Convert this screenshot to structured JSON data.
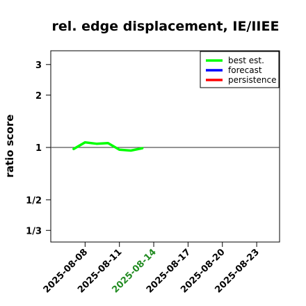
{
  "chart_data": {
    "type": "line",
    "title": "rel. edge displacement, IE/IIEE",
    "xlabel": "",
    "ylabel": "ratio score",
    "y_scale": "log",
    "ylim": [
      0.2857,
      3.6
    ],
    "xlim": [
      "2025-08-05",
      "2025-08-25"
    ],
    "y_ticks": [
      {
        "value": 0.3333,
        "label": "1/3"
      },
      {
        "value": 0.5,
        "label": "1/2"
      },
      {
        "value": 1,
        "label": "1"
      },
      {
        "value": 2,
        "label": "2"
      },
      {
        "value": 3,
        "label": "3"
      }
    ],
    "x_ticks": [
      {
        "date": "2025-08-08",
        "label": "2025-08-08",
        "color": "#000000"
      },
      {
        "date": "2025-08-11",
        "label": "2025-08-11",
        "color": "#000000"
      },
      {
        "date": "2025-08-14",
        "label": "2025-08-14",
        "color": "#228B22"
      },
      {
        "date": "2025-08-17",
        "label": "2025-08-17",
        "color": "#000000"
      },
      {
        "date": "2025-08-20",
        "label": "2025-08-20",
        "color": "#000000"
      },
      {
        "date": "2025-08-23",
        "label": "2025-08-23",
        "color": "#000000"
      }
    ],
    "reference_line": 1,
    "legend_position": "top-right",
    "series": [
      {
        "name": "best est.",
        "color": "#00ff00",
        "points": [
          {
            "x": "2025-08-07",
            "y": 0.98
          },
          {
            "x": "2025-08-08",
            "y": 1.07
          },
          {
            "x": "2025-08-09",
            "y": 1.05
          },
          {
            "x": "2025-08-10",
            "y": 1.06
          },
          {
            "x": "2025-08-11",
            "y": 0.97
          },
          {
            "x": "2025-08-12",
            "y": 0.96
          },
          {
            "x": "2025-08-13",
            "y": 0.99
          }
        ]
      },
      {
        "name": "forecast",
        "color": "#0000ff",
        "points": []
      },
      {
        "name": "persistence",
        "color": "#ff0000",
        "points": []
      }
    ]
  }
}
